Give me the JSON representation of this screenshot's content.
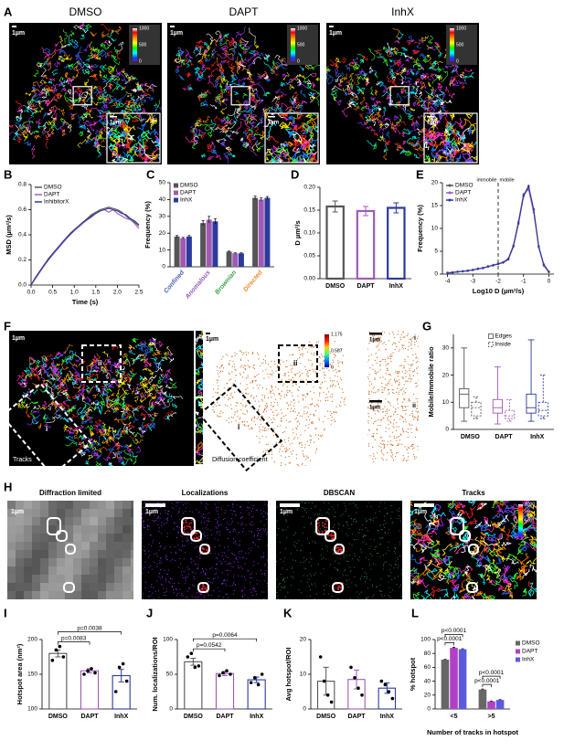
{
  "figure": {
    "A": {
      "letter": "A",
      "titles": [
        "DMSO",
        "DAPT",
        "InhX"
      ],
      "scale_bar": "1µm",
      "colorbar_ticks": [
        1000,
        500,
        0
      ]
    },
    "F": {
      "letter": "F",
      "scale_bar": "1µm",
      "region_labels": [
        "i",
        "ii"
      ],
      "tracks_label": "Tracks",
      "map_label": "Diffusion coefficient",
      "colorbar_ticks": [
        1.175,
        0.587,
        0
      ]
    },
    "H": {
      "letter": "H",
      "titles": [
        "Diffraction limited",
        "Localizations",
        "DBSCAN",
        "Tracks"
      ],
      "scale_bar": "1µm",
      "colorbar_ticks": [
        1000,
        500,
        0
      ]
    }
  },
  "chart_data": [
    {
      "type": "line",
      "panel": "B",
      "xlabel": "Time (s)",
      "ylabel": "MSD (µm²/s)",
      "x": [
        0,
        0.1,
        0.2,
        0.3,
        0.4,
        0.5,
        0.6,
        0.7,
        0.8,
        0.9,
        1.0,
        1.1,
        1.2,
        1.3,
        1.4,
        1.5,
        1.6,
        1.7,
        1.8,
        1.9,
        2.0,
        2.1,
        2.2,
        2.3,
        2.4,
        2.5
      ],
      "xlim": [
        0,
        2.5
      ],
      "xticks": [
        {
          "value": 0,
          "label": "0.0"
        },
        0.5,
        {
          "value": 1,
          "label": "1.0"
        },
        1.5,
        {
          "value": 2,
          "label": "2.0"
        },
        2.5
      ],
      "ylim": [
        0,
        0.8
      ],
      "yticks": [
        {
          "value": 0,
          "label": "0.0"
        },
        0.2,
        0.4,
        0.6,
        0.8
      ],
      "legend": "top-left",
      "series": [
        {
          "name": "DMSO",
          "color": "#555555",
          "values": [
            0,
            0.06,
            0.11,
            0.16,
            0.21,
            0.25,
            0.29,
            0.33,
            0.37,
            0.41,
            0.44,
            0.47,
            0.5,
            0.53,
            0.56,
            0.58,
            0.6,
            0.61,
            0.62,
            0.61,
            0.6,
            0.58,
            0.55,
            0.52,
            0.5,
            0.47
          ]
        },
        {
          "name": "DAPT",
          "color": "#a05ab4",
          "values": [
            0,
            0.05,
            0.1,
            0.15,
            0.2,
            0.24,
            0.28,
            0.32,
            0.36,
            0.4,
            0.43,
            0.46,
            0.49,
            0.52,
            0.54,
            0.57,
            0.59,
            0.6,
            0.58,
            0.6,
            0.57,
            0.55,
            0.53,
            0.52,
            0.49,
            0.45
          ]
        },
        {
          "name": "InhibitorX",
          "color": "#2b3a9b",
          "values": [
            0,
            0.06,
            0.11,
            0.16,
            0.2,
            0.25,
            0.29,
            0.33,
            0.37,
            0.4,
            0.44,
            0.47,
            0.5,
            0.52,
            0.55,
            0.57,
            0.59,
            0.6,
            0.61,
            0.6,
            0.59,
            0.57,
            0.56,
            0.53,
            0.51,
            0.48
          ]
        }
      ]
    },
    {
      "type": "bar",
      "panel": "C",
      "ylabel": "Frequency (%)",
      "categories": [
        "Confined",
        "Anomalous",
        "Brownian",
        "Directed"
      ],
      "category_colors": [
        "#4b5fb5",
        "#8e5bb5",
        "#3aa048",
        "#f08a2a"
      ],
      "rotate_labels": true,
      "ylim": [
        0,
        50
      ],
      "yticks": [
        0,
        10,
        20,
        30,
        40,
        50
      ],
      "legend": "top-left",
      "series": [
        {
          "name": "DMSO",
          "color": "#555555",
          "values": [
            18,
            26,
            9,
            41
          ],
          "errors": [
            0.6,
            1.5,
            0.3,
            1
          ]
        },
        {
          "name": "DAPT",
          "color": "#a05ab4",
          "values": [
            17,
            28,
            8,
            40
          ],
          "errors": [
            0.5,
            2,
            0.3,
            1
          ]
        },
        {
          "name": "InhX",
          "color": "#2b3a9b",
          "values": [
            18,
            27,
            8,
            41
          ],
          "errors": [
            0.6,
            1.5,
            0.3,
            0.8
          ]
        }
      ]
    },
    {
      "type": "bar",
      "panel": "D",
      "ylabel": "D µm²/s",
      "categories": [
        "DMSO",
        "DAPT",
        "InhX"
      ],
      "colors": [
        "#555555",
        "#a05ab4",
        "#2b3a9b"
      ],
      "values": [
        0.158,
        0.148,
        0.155
      ],
      "errors": [
        0.012,
        0.01,
        0.011
      ],
      "style": "outline",
      "ylim": [
        0,
        0.2
      ],
      "yticks": [
        {
          "value": 0,
          "label": "0.00"
        },
        0.05,
        {
          "value": 0.1,
          "label": "0.10"
        },
        0.15,
        {
          "value": 0.2,
          "label": "0.20"
        }
      ]
    },
    {
      "type": "line",
      "panel": "E",
      "xlabel": "Log10 D (µm²/s)",
      "ylabel": "Frequency (%)",
      "x": [
        -4,
        -3.8,
        -3.6,
        -3.4,
        -3.2,
        -3,
        -2.8,
        -2.6,
        -2.4,
        -2.2,
        -2,
        -1.8,
        -1.6,
        -1.4,
        -1.2,
        -1,
        -0.8,
        -0.6,
        -0.4,
        -0.2,
        0
      ],
      "xlim": [
        -4.2,
        0.2
      ],
      "xticks": [
        -4,
        -3,
        -2,
        -1,
        0
      ],
      "ylim": [
        0,
        20
      ],
      "yticks": [
        0,
        5,
        10,
        15,
        20
      ],
      "markers": true,
      "legend": "top-left",
      "vline": -2,
      "vline_labels": [
        "immobile",
        "mobile"
      ],
      "series": [
        {
          "name": "DMSO",
          "color": "#555555",
          "values": [
            0.3,
            0.4,
            0.5,
            0.6,
            0.7,
            0.9,
            1.1,
            1.3,
            1.6,
            1.9,
            2.2,
            2.5,
            3.2,
            6,
            11,
            17,
            19,
            14,
            6,
            2,
            0.5
          ]
        },
        {
          "name": "DAPT",
          "color": "#a05ab4",
          "values": [
            0.3,
            0.4,
            0.5,
            0.6,
            0.8,
            0.9,
            1.1,
            1.4,
            1.6,
            2,
            2.3,
            2.6,
            3.4,
            6.3,
            11.5,
            17.5,
            18.5,
            13.5,
            5.8,
            1.8,
            0.4
          ]
        },
        {
          "name": "InhX",
          "color": "#2b3a9b",
          "values": [
            0.2,
            0.3,
            0.5,
            0.6,
            0.7,
            0.9,
            1.2,
            1.3,
            1.7,
            1.9,
            2.2,
            2.6,
            3.3,
            6.1,
            11.2,
            17.2,
            19.3,
            14.2,
            6.1,
            2.1,
            0.5
          ]
        }
      ]
    },
    {
      "type": "box",
      "panel": "G",
      "ylabel": "Mobile/Immobile ratio",
      "categories": [
        "DMSO",
        "DAPT",
        "InhX"
      ],
      "colors": [
        "#555555",
        "#a05ab4",
        "#2b3a9b"
      ],
      "ylim": [
        0,
        35
      ],
      "yticks": [
        0,
        10,
        20,
        30
      ],
      "legend": "top",
      "series": [
        {
          "name": "Edges",
          "dash": false,
          "boxes": [
            {
              "min": 3,
              "q1": 8,
              "median": 13,
              "q3": 15,
              "max": 30
            },
            {
              "min": 2,
              "q1": 6,
              "median": 8,
              "q3": 11,
              "max": 23
            },
            {
              "min": 3,
              "q1": 6,
              "median": 8,
              "q3": 13,
              "max": 33
            }
          ]
        },
        {
          "name": "Inside",
          "dash": true,
          "boxes": [
            {
              "min": 4,
              "q1": 5,
              "median": 8,
              "q3": 10,
              "max": 12
            },
            {
              "min": 3,
              "q1": 4,
              "median": 5,
              "q3": 7,
              "max": 11
            },
            {
              "min": 4,
              "q1": 5,
              "median": 7,
              "q3": 10,
              "max": 20
            }
          ]
        }
      ]
    },
    {
      "type": "bar",
      "panel": "I",
      "ylabel": "Hotspot area (nm²)",
      "categories": [
        "DMSO",
        "DAPT",
        "InhX"
      ],
      "colors": [
        "#555555",
        "#a05ab4",
        "#2b3a9b"
      ],
      "values": [
        180,
        155,
        148
      ],
      "errors": [
        5,
        3,
        9
      ],
      "style": "thin",
      "points": [
        [
          170,
          185,
          190,
          175
        ],
        [
          150,
          155,
          158,
          152
        ],
        [
          125,
          160,
          165,
          140
        ]
      ],
      "ylim": [
        100,
        200
      ],
      "yticks": [
        100,
        150,
        200
      ],
      "comparisons": [
        {
          "groups": [
            0,
            1
          ],
          "label": "p=0.0083"
        },
        {
          "groups": [
            0,
            2
          ],
          "label": "p=0.0038"
        }
      ]
    },
    {
      "type": "bar",
      "panel": "J",
      "ylabel": "Num. localizations/ROI",
      "categories": [
        "DMSO",
        "DAPT",
        "InhX"
      ],
      "colors": [
        "#555555",
        "#a05ab4",
        "#2b3a9b"
      ],
      "values": [
        68,
        51,
        42
      ],
      "errors": [
        5,
        3,
        4
      ],
      "style": "thin",
      "points": [
        [
          75,
          80,
          60,
          62
        ],
        [
          48,
          52,
          55,
          50
        ],
        [
          38,
          45,
          35,
          50
        ]
      ],
      "ylim": [
        0,
        100
      ],
      "yticks": [
        0,
        50,
        100
      ],
      "comparisons": [
        {
          "groups": [
            0,
            1
          ],
          "label": "p=0.0542"
        },
        {
          "groups": [
            0,
            2
          ],
          "label": "p=0.0064"
        }
      ]
    },
    {
      "type": "bar",
      "panel": "K",
      "ylabel": "Avg hotspot/ROI",
      "categories": [
        "DMSO",
        "DAPT",
        "InhX"
      ],
      "colors": [
        "#555555",
        "#a05ab4",
        "#2b3a9b"
      ],
      "values": [
        8,
        8.5,
        6
      ],
      "errors": [
        4,
        2.7,
        1.5
      ],
      "style": "thin",
      "points": [
        [
          15,
          8,
          4,
          2
        ],
        [
          12,
          9,
          6,
          4
        ],
        [
          8,
          7,
          5,
          3
        ]
      ],
      "ylim": [
        0,
        20
      ],
      "yticks": [
        0,
        10,
        20
      ]
    },
    {
      "type": "bar",
      "panel": "L",
      "ylabel": "% hotspot",
      "xlabel": "Number of tracks in hotspot",
      "categories": [
        "<5",
        ">5"
      ],
      "ylim": [
        0,
        100
      ],
      "yticks": [
        0,
        20,
        40,
        60,
        80,
        100
      ],
      "legend": "right",
      "series": [
        {
          "name": "DMSO",
          "color": "#666666",
          "values": [
            71,
            28
          ],
          "errors": [
            0.5,
            0.8
          ]
        },
        {
          "name": "DAPT",
          "color": "#b041c7",
          "values": [
            88,
            11
          ],
          "errors": [
            1,
            0.5
          ]
        },
        {
          "name": "InhX",
          "color": "#5a5adf",
          "values": [
            86,
            13
          ],
          "errors": [
            0.8,
            0.5
          ]
        }
      ],
      "comparisons": [
        {
          "category": 0,
          "groups": [
            0,
            1
          ],
          "label": "p<0.0001"
        },
        {
          "category": 0,
          "groups": [
            0,
            2
          ],
          "label": "p<0.0001"
        },
        {
          "category": 1,
          "groups": [
            0,
            1
          ],
          "label": "p<0.0001"
        },
        {
          "category": 1,
          "groups": [
            0,
            2
          ],
          "label": "p<0.0001"
        }
      ]
    }
  ]
}
